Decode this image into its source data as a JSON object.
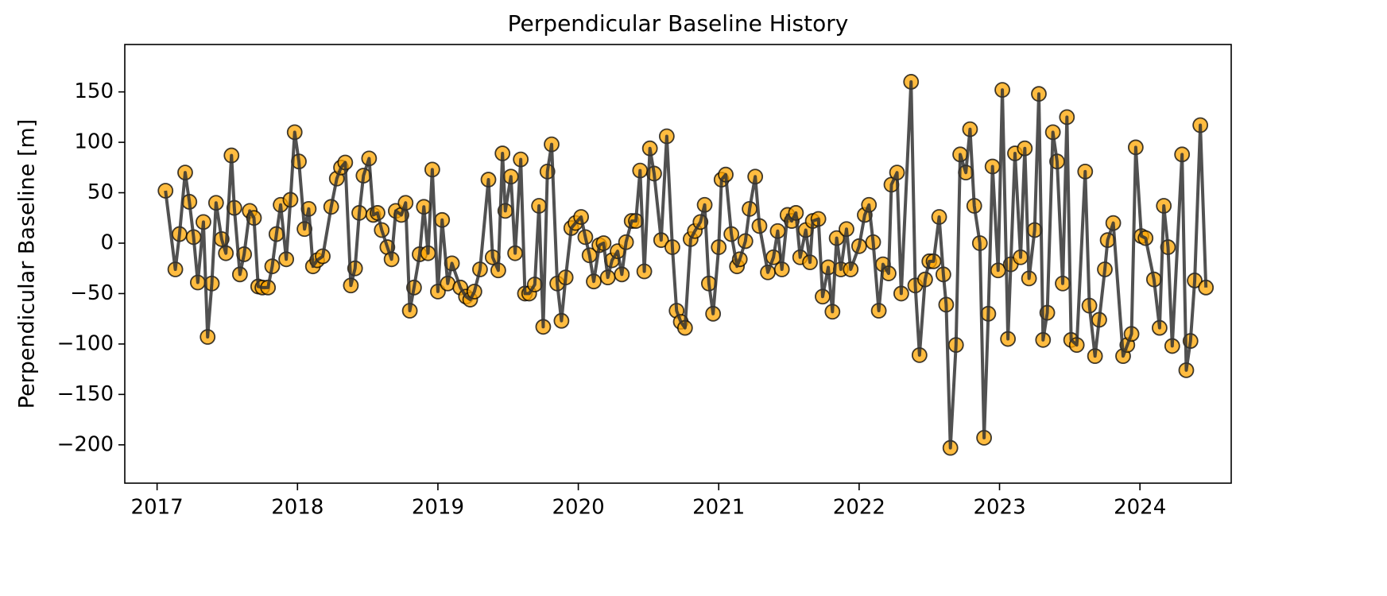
{
  "chart_data": {
    "type": "line",
    "title": "Perpendicular Baseline History",
    "ylabel": "Perpendicular Baseline [m]",
    "line_color": "#333333",
    "marker_color": "#FFA500",
    "marker_edge_color": "#000000",
    "xlim": [
      2016.77,
      2024.65
    ],
    "xticks": [
      2017,
      2018,
      2019,
      2020,
      2021,
      2022,
      2023,
      2024
    ],
    "ylim": [
      -238,
      197
    ],
    "yticks": [
      {
        "value": -200,
        "label": "−200"
      },
      {
        "value": -150,
        "label": "−150"
      },
      {
        "value": -100,
        "label": "−100"
      },
      {
        "value": -50,
        "label": "−50"
      },
      0,
      50,
      100,
      150
    ],
    "x": [
      2017.06,
      2017.13,
      2017.16,
      2017.2,
      2017.23,
      2017.26,
      2017.29,
      2017.33,
      2017.36,
      2017.39,
      2017.42,
      2017.46,
      2017.49,
      2017.53,
      2017.55,
      2017.59,
      2017.62,
      2017.66,
      2017.69,
      2017.72,
      2017.75,
      2017.79,
      2017.82,
      2017.85,
      2017.88,
      2017.92,
      2017.95,
      2017.98,
      2018.01,
      2018.05,
      2018.08,
      2018.11,
      2018.14,
      2018.18,
      2018.24,
      2018.28,
      2018.31,
      2018.34,
      2018.38,
      2018.41,
      2018.44,
      2018.47,
      2018.51,
      2018.54,
      2018.57,
      2018.6,
      2018.64,
      2018.67,
      2018.7,
      2018.74,
      2018.77,
      2018.8,
      2018.83,
      2018.87,
      2018.9,
      2018.93,
      2018.96,
      2019.0,
      2019.03,
      2019.07,
      2019.1,
      2019.16,
      2019.2,
      2019.23,
      2019.26,
      2019.3,
      2019.36,
      2019.39,
      2019.43,
      2019.46,
      2019.48,
      2019.52,
      2019.55,
      2019.59,
      2019.62,
      2019.65,
      2019.69,
      2019.72,
      2019.75,
      2019.78,
      2019.81,
      2019.85,
      2019.88,
      2019.91,
      2019.95,
      2019.98,
      2020.02,
      2020.05,
      2020.08,
      2020.11,
      2020.15,
      2020.18,
      2020.21,
      2020.24,
      2020.28,
      2020.31,
      2020.34,
      2020.38,
      2020.41,
      2020.44,
      2020.47,
      2020.51,
      2020.54,
      2020.59,
      2020.63,
      2020.67,
      2020.7,
      2020.73,
      2020.76,
      2020.8,
      2020.83,
      2020.87,
      2020.9,
      2020.93,
      2020.96,
      2021.0,
      2021.02,
      2021.05,
      2021.09,
      2021.13,
      2021.15,
      2021.19,
      2021.22,
      2021.26,
      2021.29,
      2021.35,
      2021.39,
      2021.42,
      2021.45,
      2021.49,
      2021.52,
      2021.55,
      2021.58,
      2021.62,
      2021.65,
      2021.67,
      2021.71,
      2021.74,
      2021.78,
      2021.81,
      2021.84,
      2021.87,
      2021.91,
      2021.94,
      2022.0,
      2022.04,
      2022.07,
      2022.1,
      2022.14,
      2022.17,
      2022.21,
      2022.23,
      2022.27,
      2022.3,
      2022.37,
      2022.4,
      2022.43,
      2022.47,
      2022.5,
      2022.53,
      2022.57,
      2022.6,
      2022.62,
      2022.65,
      2022.69,
      2022.72,
      2022.76,
      2022.79,
      2022.82,
      2022.86,
      2022.89,
      2022.92,
      2022.95,
      2022.99,
      2023.02,
      2023.06,
      2023.08,
      2023.11,
      2023.15,
      2023.18,
      2023.21,
      2023.25,
      2023.28,
      2023.31,
      2023.34,
      2023.38,
      2023.41,
      2023.45,
      2023.48,
      2023.51,
      2023.55,
      2023.61,
      2023.64,
      2023.68,
      2023.71,
      2023.75,
      2023.77,
      2023.81,
      2023.88,
      2023.91,
      2023.94,
      2023.97,
      2024.01,
      2024.04,
      2024.1,
      2024.14,
      2024.17,
      2024.2,
      2024.23,
      2024.3,
      2024.33,
      2024.36,
      2024.39,
      2024.43,
      2024.47
    ],
    "values": [
      52,
      -26,
      9,
      70,
      41,
      6,
      -39,
      21,
      -93,
      -40,
      40,
      4,
      -10,
      87,
      35,
      -31,
      -11,
      32,
      25,
      -43,
      -44,
      -44,
      -23,
      9,
      38,
      -16,
      43,
      110,
      81,
      14,
      34,
      -23,
      -17,
      -13,
      36,
      64,
      75,
      80,
      -42,
      -25,
      30,
      67,
      84,
      28,
      30,
      13,
      -4,
      -16,
      32,
      28,
      40,
      -67,
      -44,
      -11,
      36,
      -10,
      73,
      -48,
      23,
      -40,
      -20,
      -44,
      -53,
      -56,
      -48,
      -26,
      63,
      -14,
      -27,
      89,
      32,
      66,
      -10,
      83,
      -50,
      -50,
      -41,
      37,
      -83,
      71,
      98,
      -40,
      -77,
      -34,
      15,
      20,
      26,
      6,
      -12,
      -38,
      -2,
      0,
      -34,
      -17,
      -8,
      -31,
      1,
      22,
      22,
      72,
      -28,
      94,
      69,
      3,
      106,
      -4,
      -67,
      -78,
      -84,
      4,
      12,
      21,
      38,
      -40,
      -70,
      -4,
      63,
      68,
      9,
      -23,
      -16,
      2,
      34,
      66,
      17,
      -29,
      -14,
      12,
      -26,
      28,
      22,
      30,
      -14,
      13,
      -19,
      22,
      24,
      -53,
      -24,
      -68,
      5,
      -26,
      14,
      -26,
      -3,
      28,
      38,
      1,
      -67,
      -21,
      -30,
      58,
      70,
      -50,
      160,
      -42,
      -111,
      -36,
      -18,
      -18,
      26,
      -31,
      -61,
      -203,
      -101,
      88,
      70,
      113,
      37,
      0,
      -193,
      -70,
      76,
      -27,
      152,
      -95,
      -21,
      89,
      -14,
      94,
      -35,
      13,
      148,
      -96,
      -69,
      110,
      81,
      -40,
      125,
      -96,
      -101,
      71,
      -62,
      -112,
      -76,
      -26,
      3,
      20,
      -112,
      -101,
      -90,
      95,
      7,
      5,
      -36,
      -84,
      37,
      -4,
      -102,
      88,
      -126,
      -97,
      -37,
      117,
      -44
    ]
  }
}
